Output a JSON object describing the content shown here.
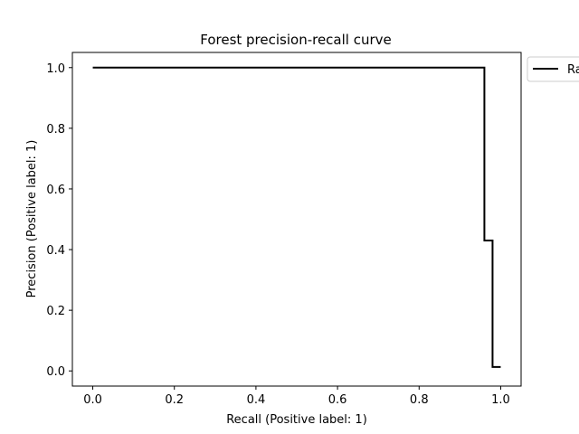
{
  "chart_data": {
    "type": "line",
    "title": "Forest precision-recall curve",
    "xlabel": "Recall (Positive label: 1)",
    "ylabel": "Precision (Positive label: 1)",
    "xlim": [
      -0.05,
      1.05
    ],
    "ylim": [
      -0.05,
      1.05
    ],
    "xticks": [
      0.0,
      0.2,
      0.4,
      0.6,
      0.8,
      1.0
    ],
    "yticks": [
      0.0,
      0.2,
      0.4,
      0.6,
      0.8,
      1.0
    ],
    "xtick_labels": [
      "0.0",
      "0.2",
      "0.4",
      "0.6",
      "0.8",
      "1.0"
    ],
    "ytick_labels": [
      "0.0",
      "0.2",
      "0.4",
      "0.6",
      "0.8",
      "1.0"
    ],
    "grid": false,
    "legend_position": "outside top-right",
    "series": [
      {
        "name": "Ra",
        "color": "#000000",
        "drawstyle": "steps-post",
        "x": [
          0.0,
          0.96,
          0.96,
          0.98,
          0.98,
          1.0
        ],
        "y": [
          1.0,
          1.0,
          0.43,
          0.43,
          0.013,
          0.013
        ]
      }
    ]
  }
}
